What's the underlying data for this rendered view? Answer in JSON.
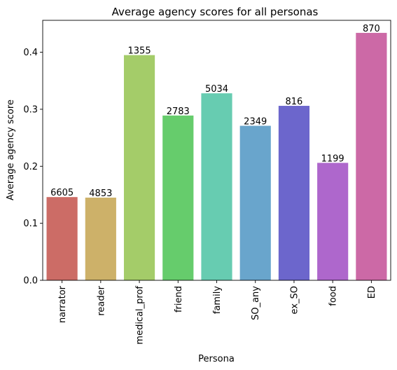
{
  "chart_data": {
    "type": "bar",
    "title": "Average agency scores for all personas",
    "xlabel": "Persona",
    "ylabel": "Average agency score",
    "ylim": [
      0,
      0.456
    ],
    "yticks": [
      "0.0",
      "0.1",
      "0.2",
      "0.3",
      "0.4"
    ],
    "categories": [
      "narrator",
      "reader",
      "medical_prof",
      "friend",
      "family",
      "SO_any",
      "ex_SO",
      "food",
      "ED"
    ],
    "values": [
      0.146,
      0.145,
      0.395,
      0.289,
      0.328,
      0.271,
      0.306,
      0.206,
      0.434
    ],
    "data_labels": [
      "6605",
      "4853",
      "1355",
      "2783",
      "5034",
      "2349",
      "816",
      "1199",
      "870"
    ],
    "colors": [
      "#cc6c66",
      "#cdb169",
      "#a4cc69",
      "#66cc6c",
      "#67ccb1",
      "#69a5cc",
      "#6c66cc",
      "#ae67cc",
      "#cc69a6"
    ],
    "grid": false,
    "legend": "none"
  }
}
